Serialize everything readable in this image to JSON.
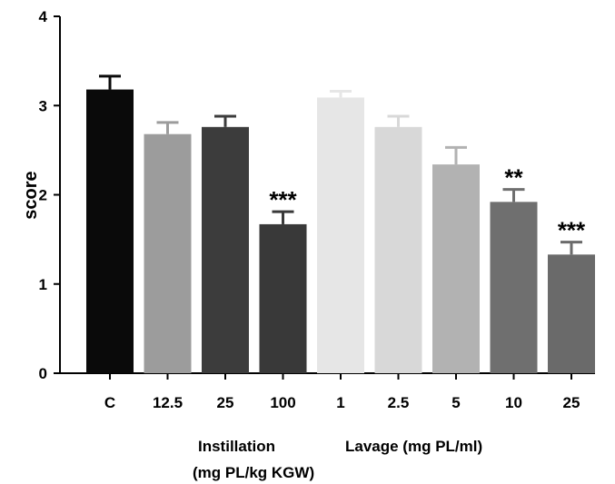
{
  "chart_data": {
    "type": "bar",
    "title": "",
    "ylabel": "score",
    "ylim": [
      0,
      4
    ],
    "yticks": [
      0,
      1,
      2,
      3,
      4
    ],
    "grid": false,
    "categories": [
      "C",
      "12.5",
      "25",
      "100",
      "1",
      "2.5",
      "5",
      "10",
      "25"
    ],
    "values": [
      3.18,
      2.68,
      2.76,
      1.67,
      3.09,
      2.76,
      2.34,
      1.92,
      1.33
    ],
    "errors": [
      0.15,
      0.13,
      0.12,
      0.14,
      0.07,
      0.12,
      0.19,
      0.14,
      0.14
    ],
    "bar_colors": [
      "#0a0a0a",
      "#9c9c9c",
      "#3c3c3c",
      "#393939",
      "#e6e6e6",
      "#d8d8d8",
      "#b2b2b2",
      "#6f6f6f",
      "#6a6a6a"
    ],
    "significance": [
      "",
      "",
      "",
      "***",
      "",
      "",
      "",
      "**",
      "***"
    ],
    "groups": [
      {
        "label_lines": [
          "Instillation",
          "(mg PL/kg KGW)"
        ],
        "categories": [
          "12.5",
          "25",
          "100"
        ]
      },
      {
        "label_lines": [
          "Lavage (mg PL/ml)"
        ],
        "categories": [
          "1",
          "2.5",
          "5",
          "10",
          "25"
        ]
      }
    ]
  }
}
